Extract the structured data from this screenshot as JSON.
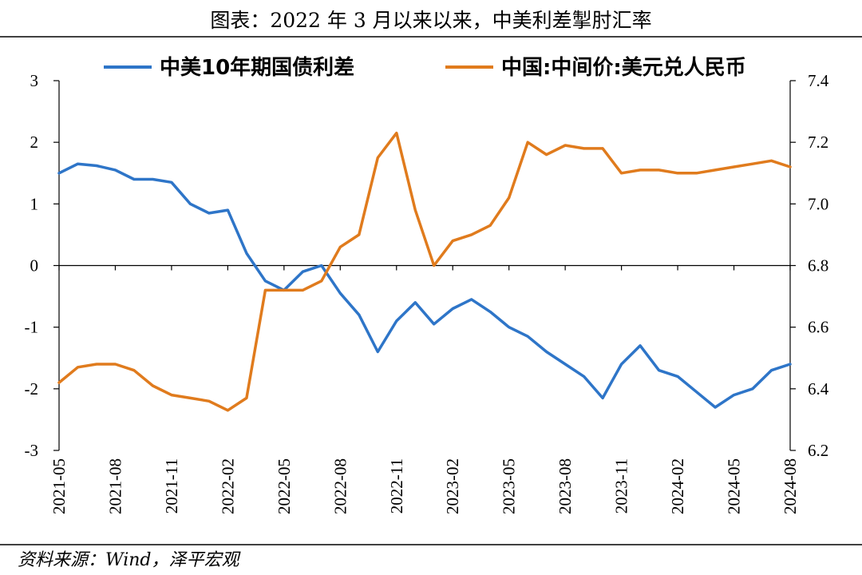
{
  "chart_data": {
    "type": "line",
    "title": "图表：2022 年 3 月以来以来，中美利差掣肘汇率",
    "source": "资料来源：Wind，泽平宏观",
    "legend_position": "top",
    "grid": false,
    "x_tick_labels": [
      "2021-05",
      "2021-08",
      "2021-11",
      "2022-02",
      "2022-05",
      "2022-08",
      "2022-11",
      "2023-02",
      "2023-05",
      "2023-08",
      "2023-11",
      "2024-02",
      "2024-05",
      "2024-08"
    ],
    "x_range": [
      "2021-05",
      "2024-08"
    ],
    "y_left": {
      "ticks": [
        "3",
        "2",
        "1",
        "0",
        "-1",
        "-2",
        "-3"
      ],
      "range": [
        -3,
        3
      ]
    },
    "y_right": {
      "ticks": [
        "7.4",
        "7.2",
        "7.0",
        "6.8",
        "6.6",
        "6.4",
        "6.2"
      ],
      "range": [
        6.2,
        7.4
      ]
    },
    "series": [
      {
        "name": "中美10年期国债利差",
        "axis": "left",
        "color": "#2E75C8",
        "x": [
          "2021-05",
          "2021-06",
          "2021-07",
          "2021-08",
          "2021-09",
          "2021-10",
          "2021-11",
          "2021-12",
          "2022-01",
          "2022-02",
          "2022-03",
          "2022-04",
          "2022-05",
          "2022-06",
          "2022-07",
          "2022-08",
          "2022-09",
          "2022-10",
          "2022-11",
          "2022-12",
          "2023-01",
          "2023-02",
          "2023-03",
          "2023-04",
          "2023-05",
          "2023-06",
          "2023-07",
          "2023-08",
          "2023-09",
          "2023-10",
          "2023-11",
          "2023-12",
          "2024-01",
          "2024-02",
          "2024-03",
          "2024-04",
          "2024-05",
          "2024-06",
          "2024-07",
          "2024-08"
        ],
        "values": [
          1.5,
          1.65,
          1.62,
          1.55,
          1.4,
          1.4,
          1.35,
          1.0,
          0.85,
          0.9,
          0.2,
          -0.25,
          -0.4,
          -0.1,
          0.0,
          -0.45,
          -0.8,
          -1.4,
          -0.9,
          -0.6,
          -0.95,
          -0.7,
          -0.55,
          -0.75,
          -1.0,
          -1.15,
          -1.4,
          -1.6,
          -1.8,
          -2.15,
          -1.6,
          -1.3,
          -1.7,
          -1.8,
          -2.05,
          -2.3,
          -2.1,
          -2.0,
          -1.7,
          -1.6
        ]
      },
      {
        "name": "中国:中间价:美元兑人民币",
        "axis": "right",
        "color": "#E07B1D",
        "x": [
          "2021-05",
          "2021-06",
          "2021-07",
          "2021-08",
          "2021-09",
          "2021-10",
          "2021-11",
          "2021-12",
          "2022-01",
          "2022-02",
          "2022-03",
          "2022-04",
          "2022-05",
          "2022-06",
          "2022-07",
          "2022-08",
          "2022-09",
          "2022-10",
          "2022-11",
          "2022-12",
          "2023-01",
          "2023-02",
          "2023-03",
          "2023-04",
          "2023-05",
          "2023-06",
          "2023-07",
          "2023-08",
          "2023-09",
          "2023-10",
          "2023-11",
          "2023-12",
          "2024-01",
          "2024-02",
          "2024-03",
          "2024-04",
          "2024-05",
          "2024-06",
          "2024-07",
          "2024-08"
        ],
        "values": [
          6.42,
          6.47,
          6.48,
          6.48,
          6.46,
          6.41,
          6.38,
          6.37,
          6.36,
          6.33,
          6.37,
          6.72,
          6.72,
          6.72,
          6.75,
          6.86,
          6.9,
          7.15,
          7.23,
          6.98,
          6.8,
          6.88,
          6.9,
          6.93,
          7.02,
          7.2,
          7.16,
          7.19,
          7.18,
          7.18,
          7.1,
          7.11,
          7.11,
          7.1,
          7.1,
          7.11,
          7.12,
          7.13,
          7.14,
          7.12
        ]
      }
    ]
  }
}
